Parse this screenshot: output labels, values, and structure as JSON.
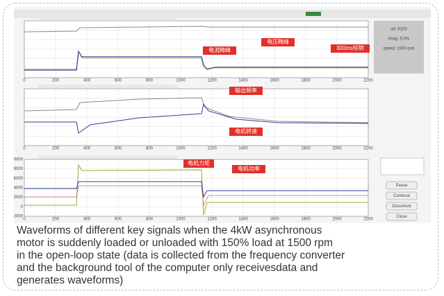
{
  "x_tick_labels": [
    "0",
    "200",
    "400",
    "600",
    "800",
    "1000",
    "1200",
    "1400",
    "1600",
    "1800",
    "2000",
    "2200"
  ],
  "y_tick_labels_bottom": [
    "10000",
    "8000",
    "6000",
    "4000",
    "2000",
    "0",
    "-2000"
  ],
  "annotations": [
    "电流畸峰",
    "电压畸峰",
    "300ms恒转",
    "输出频率",
    "电机转速",
    "电机力矩",
    "电机功率"
  ],
  "info_panel": [
    "ud: 310V",
    "Imag: 5.0%",
    "speed: 1500 rpm"
  ],
  "buttons": [
    "Pause",
    "Continue",
    "Document",
    "Close"
  ],
  "caption": [
    "Waveforms of different key signals when the 4kW asynchronous",
    "motor is suddenly loaded or unloaded with 150% load at 1500 rpm",
    "in the open-loop state (data is collected from the frequency converter",
    "and the background tool of the computer only receivesdata and",
    "generates waveforms)"
  ]
}
